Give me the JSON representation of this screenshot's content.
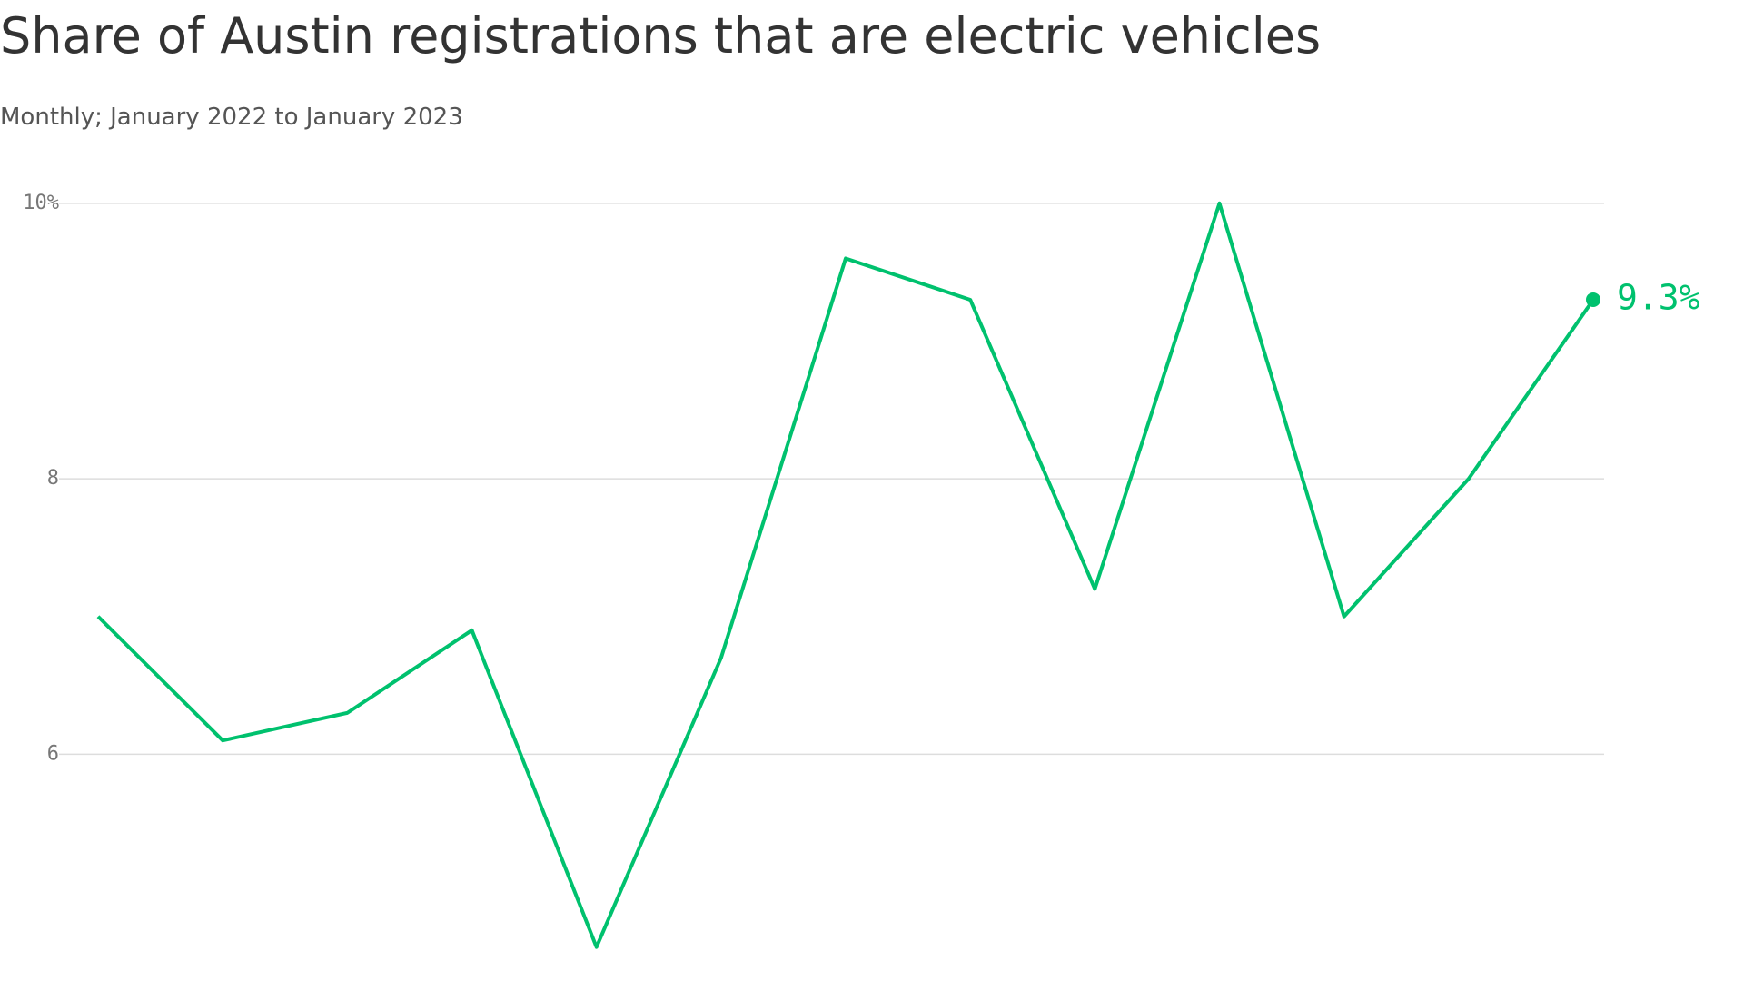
{
  "chart_data": {
    "type": "line",
    "title": "Share of Austin registrations that are electric vehicles",
    "subtitle": "Monthly; January 2022 to January 2023",
    "values": [
      7.0,
      6.1,
      6.3,
      6.9,
      4.6,
      6.7,
      9.6,
      9.3,
      7.2,
      10.0,
      7.0,
      8.0,
      9.3
    ],
    "value_labels": [
      null,
      null,
      null,
      null,
      null,
      null,
      null,
      null,
      null,
      null,
      null,
      null,
      "9.3%"
    ],
    "color": "#00c16e",
    "ylim": [
      4.4,
      10.5
    ],
    "yticks": [
      {
        "value": 10,
        "label": "10%"
      },
      8,
      6
    ],
    "grid": true
  }
}
